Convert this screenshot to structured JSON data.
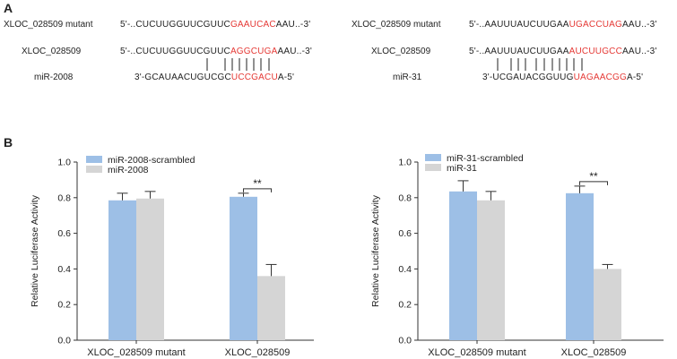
{
  "panel_a_label": "A",
  "panel_b_label": "B",
  "sequences": [
    {
      "rows": [
        {
          "name": "XLOC_028509 mutant",
          "prefix": "5'-..CUCUUGGUUCGUUC",
          "highlight": "GAAUCAC",
          "suffix": "AAU..-3'"
        },
        {
          "name": "XLOC_028509",
          "prefix": "5'-..CUCUUGGUUCGUUC",
          "highlight": "AGGCUGA",
          "suffix": "AAU..-3'"
        },
        {
          "name": "miR-2008",
          "prefix": "3'-GCAUAACUGUCGC",
          "highlight": "UCCGACU",
          "suffix": "A-5'"
        }
      ]
    },
    {
      "rows": [
        {
          "name": "XLOC_028509 mutant",
          "prefix": "5'-..AAUUUAUCUUGAA",
          "highlight": "UGACCUAG",
          "suffix": "AAU..-3'"
        },
        {
          "name": "XLOC_028509",
          "prefix": "5'-..AAUUUAUCUUGAA",
          "highlight": "AUCUUGCC",
          "suffix": "AAU..-3'"
        },
        {
          "name": "miR-31",
          "prefix": "3'-UCGAUACGGUUG",
          "highlight": "UAGAACGG",
          "suffix": "A-5'"
        }
      ]
    }
  ],
  "colors": {
    "scrambled": "#9dbfe6",
    "mirna": "#d5d5d5",
    "highlight": "#e53935",
    "axis": "#333333"
  },
  "chart_data": [
    {
      "type": "bar",
      "ylabel": "Relative Luciferase Activity",
      "ylim": [
        0,
        1.0
      ],
      "yticks": [
        "0.0",
        "0.2",
        "0.4",
        "0.6",
        "0.8",
        "1.0"
      ],
      "categories": [
        "XLOC_028509 mutant",
        "XLOC_028509"
      ],
      "series": [
        {
          "name": "miR-2008-scrambled",
          "values": [
            0.785,
            0.805
          ],
          "errors": [
            0.04,
            0.02
          ]
        },
        {
          "name": "miR-2008",
          "values": [
            0.795,
            0.36
          ],
          "errors": [
            0.04,
            0.065
          ]
        }
      ],
      "significance": {
        "label": "**",
        "category_index": 1
      },
      "legend_position": "top-left"
    },
    {
      "type": "bar",
      "ylabel": "Relative Luciferase Activity",
      "ylim": [
        0,
        1.0
      ],
      "yticks": [
        "0.0",
        "0.2",
        "0.4",
        "0.6",
        "0.8",
        "1.0"
      ],
      "categories": [
        "XLOC_028509 mutant",
        "XLOC_028509"
      ],
      "series": [
        {
          "name": "miR-31-scrambled",
          "values": [
            0.835,
            0.825
          ],
          "errors": [
            0.06,
            0.04
          ]
        },
        {
          "name": "miR-31",
          "values": [
            0.785,
            0.4
          ],
          "errors": [
            0.05,
            0.025
          ]
        }
      ],
      "significance": {
        "label": "**",
        "category_index": 1
      },
      "legend_position": "top-left"
    }
  ]
}
